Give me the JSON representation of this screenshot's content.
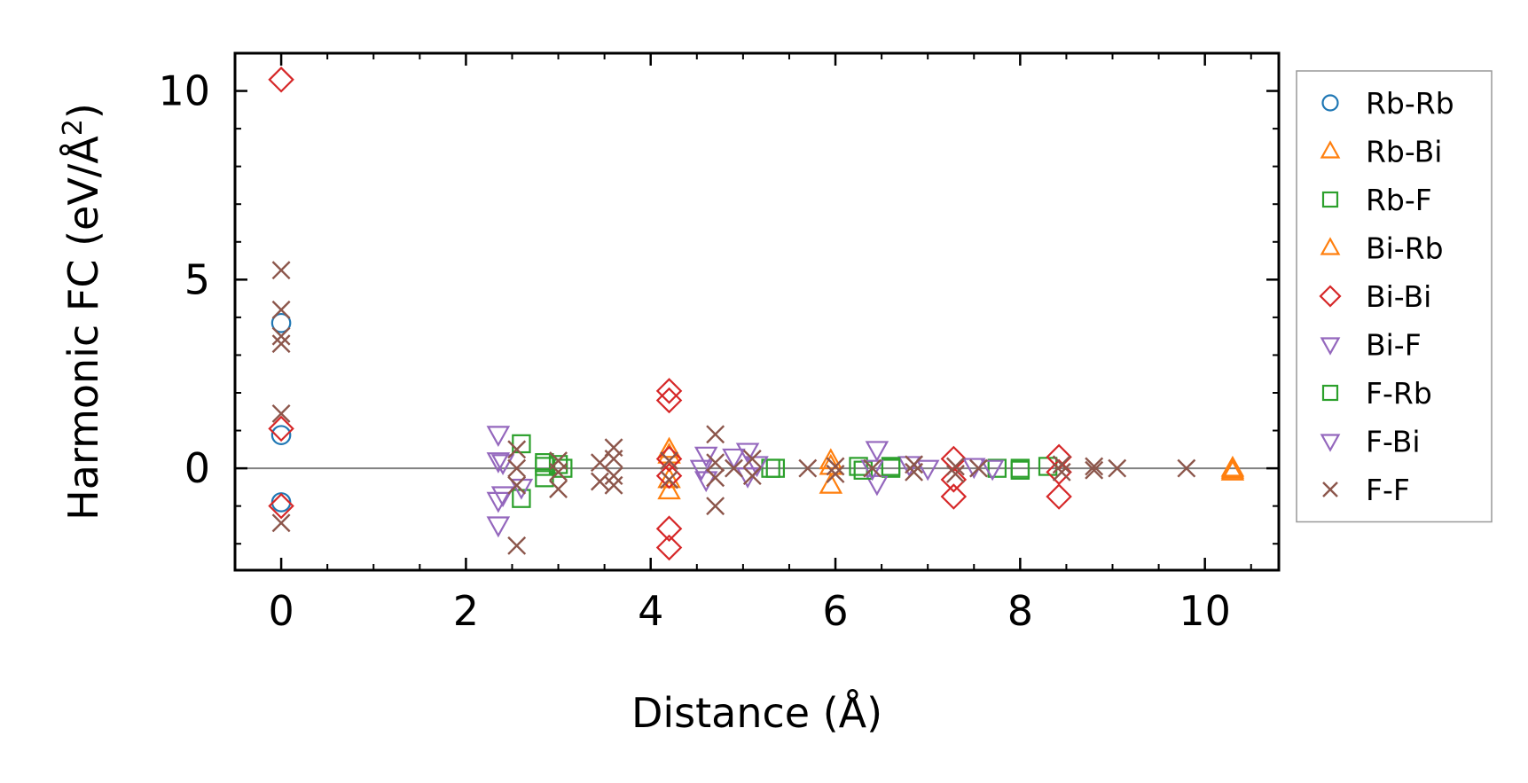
{
  "chart_data": {
    "type": "scatter",
    "xlabel": "Distance (Å)",
    "ylabel_main": "Harmonic FC (eV/Å",
    "ylabel_sup": "2",
    "ylabel_close": ")",
    "xlim": [
      -0.5,
      10.8
    ],
    "ylim": [
      -2.7,
      11.0
    ],
    "x_ticks": [
      0,
      2,
      4,
      6,
      8,
      10
    ],
    "x_tick_labels": [
      "0",
      "2",
      "4",
      "6",
      "8",
      "10"
    ],
    "y_ticks": [
      0,
      5,
      10
    ],
    "y_tick_labels": [
      "0",
      "5",
      "10"
    ],
    "grid": false,
    "legend_position": "right",
    "zero_line": true,
    "series": [
      {
        "name": "Rb-Rb",
        "marker": "circle",
        "color": "#1f77b4",
        "points": [
          [
            0,
            3.85
          ],
          [
            0,
            0.88
          ],
          [
            0,
            -0.9
          ]
        ]
      },
      {
        "name": "Rb-Bi",
        "marker": "triangle-up",
        "color": "#ff7f0e",
        "points": [
          [
            4.2,
            0.5
          ],
          [
            4.2,
            -0.6
          ],
          [
            5.95,
            0.2
          ],
          [
            5.95,
            -0.45
          ],
          [
            10.3,
            0.0
          ],
          [
            10.3,
            -0.1
          ]
        ]
      },
      {
        "name": "Rb-F",
        "marker": "square",
        "color": "#2ca02c",
        "points": [
          [
            2.6,
            0.65
          ],
          [
            2.6,
            -0.8
          ],
          [
            2.85,
            0.15
          ],
          [
            2.85,
            -0.25
          ],
          [
            3.0,
            0.1
          ],
          [
            5.3,
            0.0
          ],
          [
            6.25,
            0.05
          ],
          [
            6.6,
            0.0
          ],
          [
            7.75,
            0.0
          ],
          [
            8.0,
            0.0
          ],
          [
            8.3,
            0.05
          ]
        ]
      },
      {
        "name": "Bi-Rb",
        "marker": "triangle-up",
        "color": "#ff7f0e",
        "points": [
          [
            4.2,
            0.35
          ],
          [
            4.2,
            -0.3
          ],
          [
            5.95,
            0.05
          ],
          [
            10.3,
            -0.05
          ]
        ]
      },
      {
        "name": "Bi-Bi",
        "marker": "diamond",
        "color": "#d62728",
        "points": [
          [
            0,
            10.3
          ],
          [
            0,
            1.05
          ],
          [
            0,
            -1.0
          ],
          [
            4.2,
            2.05
          ],
          [
            4.2,
            1.8
          ],
          [
            4.2,
            0.25
          ],
          [
            4.2,
            -0.2
          ],
          [
            4.2,
            -1.6
          ],
          [
            4.2,
            -2.1
          ],
          [
            7.28,
            0.25
          ],
          [
            7.28,
            -0.3
          ],
          [
            7.28,
            -0.75
          ],
          [
            8.42,
            0.3
          ],
          [
            8.42,
            -0.1
          ],
          [
            8.42,
            -0.75
          ]
        ]
      },
      {
        "name": "Bi-F",
        "marker": "triangle-down",
        "color": "#9467bd",
        "points": [
          [
            2.35,
            0.9
          ],
          [
            2.35,
            0.2
          ],
          [
            2.35,
            -0.85
          ],
          [
            2.35,
            -1.5
          ],
          [
            2.6,
            -0.5
          ],
          [
            4.6,
            0.35
          ],
          [
            4.6,
            -0.3
          ],
          [
            5.05,
            0.45
          ],
          [
            5.05,
            -0.2
          ],
          [
            6.45,
            0.5
          ],
          [
            6.45,
            -0.4
          ],
          [
            6.8,
            0.1
          ],
          [
            7.5,
            0.05
          ],
          [
            7.7,
            0.0
          ]
        ]
      },
      {
        "name": "F-Rb",
        "marker": "square",
        "color": "#2ca02c",
        "points": [
          [
            2.85,
            0.05
          ],
          [
            3.05,
            0.0
          ],
          [
            5.35,
            0.0
          ],
          [
            6.3,
            -0.05
          ],
          [
            6.6,
            0.05
          ],
          [
            8.0,
            -0.05
          ]
        ]
      },
      {
        "name": "F-Bi",
        "marker": "triangle-down",
        "color": "#9467bd",
        "points": [
          [
            2.4,
            0.15
          ],
          [
            2.4,
            -0.7
          ],
          [
            4.55,
            0.0
          ],
          [
            4.9,
            0.3
          ],
          [
            5.15,
            0.1
          ],
          [
            6.4,
            0.0
          ],
          [
            7.0,
            0.0
          ]
        ]
      },
      {
        "name": "F-F",
        "marker": "x",
        "color": "#8c564b",
        "points": [
          [
            0,
            5.25
          ],
          [
            0,
            4.2
          ],
          [
            0,
            3.5
          ],
          [
            0,
            3.3
          ],
          [
            0,
            1.45
          ],
          [
            0,
            -1.45
          ],
          [
            2.55,
            0.5
          ],
          [
            2.55,
            0.0
          ],
          [
            2.55,
            -0.45
          ],
          [
            2.55,
            -2.05
          ],
          [
            3.0,
            0.2
          ],
          [
            3.0,
            -0.1
          ],
          [
            3.0,
            -0.55
          ],
          [
            3.45,
            0.15
          ],
          [
            3.45,
            -0.35
          ],
          [
            3.6,
            0.55
          ],
          [
            3.6,
            0.25
          ],
          [
            3.6,
            -0.2
          ],
          [
            3.6,
            -0.45
          ],
          [
            4.2,
            0.2
          ],
          [
            4.2,
            -0.3
          ],
          [
            4.7,
            0.9
          ],
          [
            4.7,
            0.15
          ],
          [
            4.7,
            -0.25
          ],
          [
            4.7,
            -1.0
          ],
          [
            4.9,
            0.0
          ],
          [
            5.1,
            0.25
          ],
          [
            5.1,
            -0.2
          ],
          [
            5.7,
            0.0
          ],
          [
            6.0,
            0.05
          ],
          [
            6.0,
            -0.15
          ],
          [
            6.4,
            0.0
          ],
          [
            6.85,
            0.1
          ],
          [
            6.85,
            -0.1
          ],
          [
            7.3,
            0.05
          ],
          [
            7.3,
            -0.15
          ],
          [
            7.55,
            0.0
          ],
          [
            8.45,
            0.1
          ],
          [
            8.45,
            -0.1
          ],
          [
            8.8,
            0.05
          ],
          [
            8.8,
            -0.05
          ],
          [
            9.05,
            0.0
          ],
          [
            9.8,
            0.0
          ]
        ]
      }
    ]
  }
}
